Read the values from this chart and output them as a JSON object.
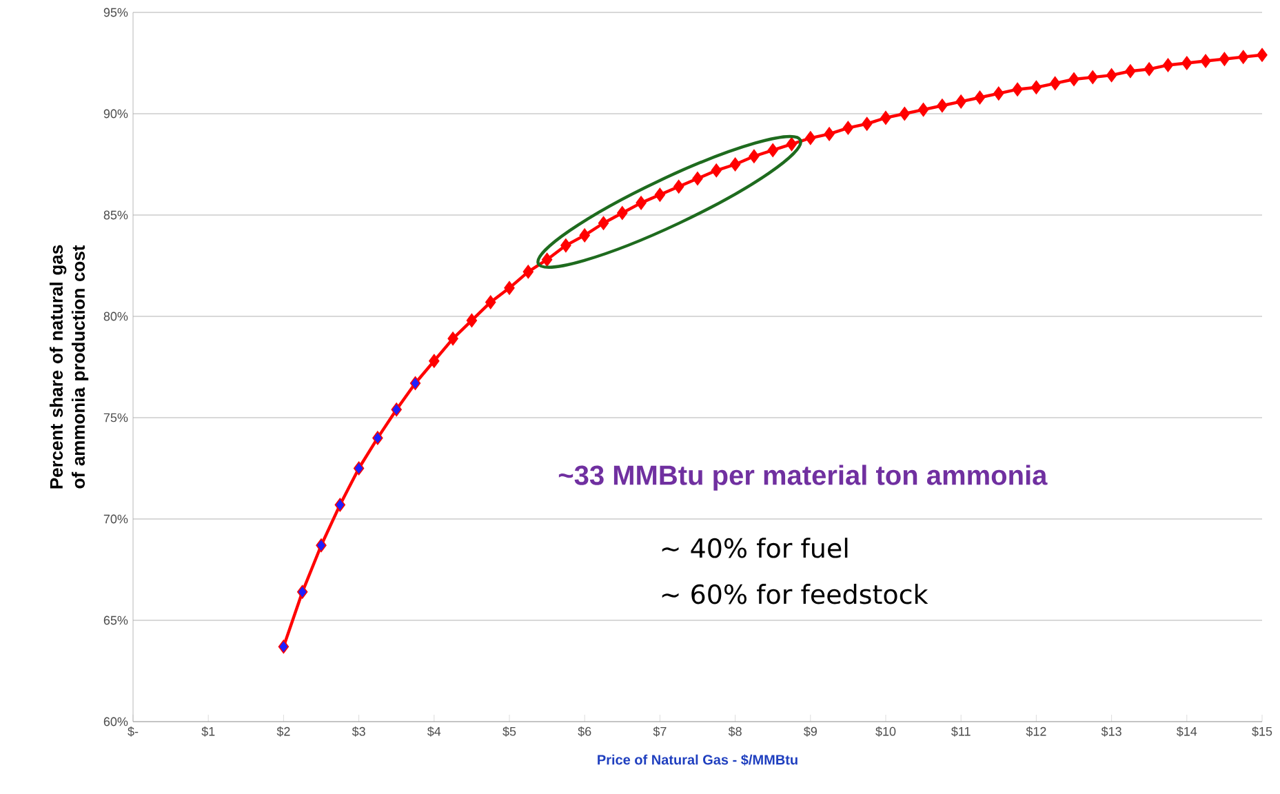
{
  "chart_data": {
    "type": "line",
    "xlabel": "Price of Natural Gas - $/MMBtu",
    "ylabel": "Percent share of natural gas of ammonia production cost",
    "x": [
      2,
      2.25,
      2.5,
      2.75,
      3,
      3.25,
      3.5,
      3.75,
      4,
      4.25,
      4.5,
      4.75,
      5,
      5.25,
      5.5,
      5.75,
      6,
      6.25,
      6.5,
      6.75,
      7,
      7.25,
      7.5,
      7.75,
      8,
      8.25,
      8.5,
      8.75,
      9,
      9.25,
      9.5,
      9.75,
      10,
      10.25,
      10.5,
      10.75,
      11,
      11.25,
      11.5,
      11.75,
      12,
      12.25,
      12.5,
      12.75,
      13,
      13.25,
      13.5,
      13.75,
      14,
      14.25,
      14.5,
      14.75,
      15
    ],
    "series": [
      {
        "color": "#ff0000",
        "values": [
          63.7,
          66.4,
          68.7,
          70.7,
          72.5,
          74.0,
          75.4,
          76.7,
          77.8,
          78.9,
          79.8,
          80.7,
          81.4,
          82.2,
          82.8,
          83.5,
          84.0,
          84.6,
          85.1,
          85.6,
          86.0,
          86.4,
          86.8,
          87.2,
          87.5,
          87.9,
          88.2,
          88.5,
          88.8,
          89.0,
          89.3,
          89.5,
          89.8,
          90.0,
          90.2,
          90.4,
          90.6,
          90.8,
          91.0,
          91.2,
          91.3,
          91.5,
          91.7,
          91.8,
          91.9,
          92.1,
          92.2,
          92.4,
          92.5,
          92.6,
          92.7,
          92.8,
          92.9
        ],
        "colors": [
          "#1f1fff",
          "#1f1fff",
          "#1f1fff",
          "#1f1fff",
          "#1f1fff",
          "#1f1fff",
          "#1f1fff",
          "#1f1fff",
          "#ff0000",
          "#ff0000",
          "#ff0000",
          "#ff0000",
          "#ff0000",
          "#ff0000",
          "#ff0000",
          "#ff0000",
          "#ff0000",
          "#ff0000",
          "#ff0000",
          "#ff0000",
          "#ff0000",
          "#ff0000",
          "#ff0000",
          "#ff0000",
          "#ff0000",
          "#ff0000",
          "#ff0000",
          "#ff0000",
          "#ff0000",
          "#ff0000",
          "#ff0000",
          "#ff0000",
          "#ff0000",
          "#ff0000",
          "#ff0000",
          "#ff0000",
          "#ff0000",
          "#ff0000",
          "#ff0000",
          "#ff0000",
          "#ff0000",
          "#ff0000",
          "#ff0000",
          "#ff0000",
          "#ff0000",
          "#ff0000",
          "#ff0000",
          "#ff0000",
          "#ff0000",
          "#ff0000",
          "#ff0000",
          "#ff0000",
          "#ff0000"
        ]
      }
    ],
    "xlim": [
      0,
      15
    ],
    "xticks": [
      {
        "value": 0,
        "label": "$-"
      },
      {
        "value": 1,
        "label": "$1"
      },
      {
        "value": 2,
        "label": "$2"
      },
      {
        "value": 3,
        "label": "$3"
      },
      {
        "value": 4,
        "label": "$4"
      },
      {
        "value": 5,
        "label": "$5"
      },
      {
        "value": 6,
        "label": "$6"
      },
      {
        "value": 7,
        "label": "$7"
      },
      {
        "value": 8,
        "label": "$8"
      },
      {
        "value": 9,
        "label": "$9"
      },
      {
        "value": 10,
        "label": "$10"
      },
      {
        "value": 11,
        "label": "$11"
      },
      {
        "value": 12,
        "label": "$12"
      },
      {
        "value": 13,
        "label": "$13"
      },
      {
        "value": 14,
        "label": "$14"
      },
      {
        "value": 15,
        "label": "$15"
      }
    ],
    "ylim": [
      60,
      95
    ],
    "yticks": [
      {
        "value": 60,
        "label": "60%"
      },
      {
        "value": 65,
        "label": "65%"
      },
      {
        "value": 70,
        "label": "70%"
      },
      {
        "value": 75,
        "label": "75%"
      },
      {
        "value": 80,
        "label": "80%"
      },
      {
        "value": 85,
        "label": "85%"
      },
      {
        "value": 90,
        "label": "90%"
      },
      {
        "value": 95,
        "label": "95%"
      }
    ],
    "grid": "y",
    "marker": "diamond",
    "line_style": "solid",
    "annotations": [
      "~33 MMBtu per material ton ammonia",
      "~ 40% for fuel",
      "~ 60% for feedstock"
    ]
  }
}
